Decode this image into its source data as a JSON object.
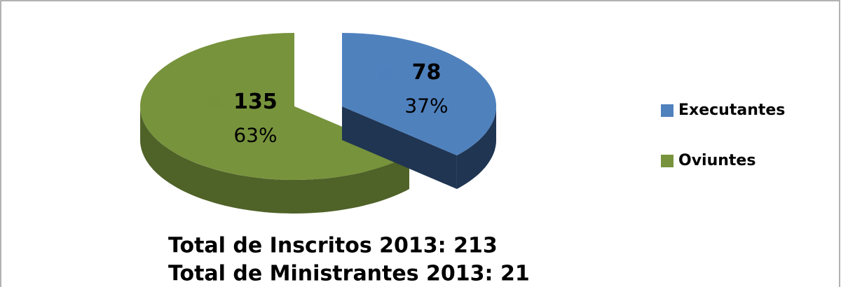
{
  "chart_data": {
    "type": "pie3d",
    "categories": [
      "Executantes",
      "Oviuntes"
    ],
    "values": [
      78,
      135
    ],
    "percent_labels": [
      "37%",
      "63%"
    ],
    "colors": [
      "#4f81bd",
      "#77933c"
    ],
    "side_colors": [
      "#1f3552",
      "#4f6228"
    ],
    "legend": "right",
    "annotations": [
      "Total de Inscritos 2013:  213",
      "Total de Ministrantes 2013: 21"
    ]
  }
}
